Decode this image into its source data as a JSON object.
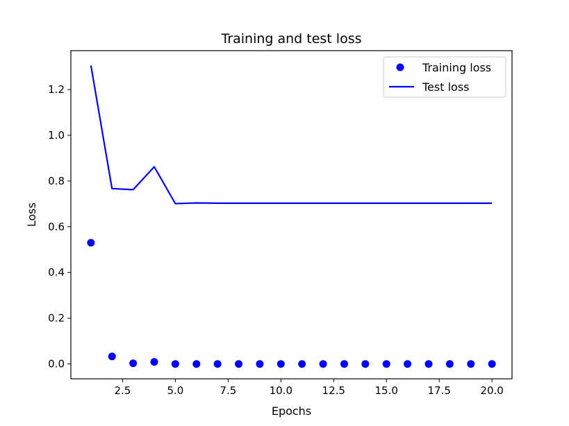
{
  "chart_data": {
    "type": "scatter",
    "title": "Training and test loss",
    "xlabel": "Epochs",
    "ylabel": "Loss",
    "xlim": [
      0.05,
      20.95
    ],
    "ylim": [
      -0.065,
      1.37
    ],
    "xticks": [
      2.5,
      5.0,
      7.5,
      10.0,
      12.5,
      15.0,
      17.5,
      20.0
    ],
    "xtick_labels": [
      "2.5",
      "5.0",
      "7.5",
      "10.0",
      "12.5",
      "15.0",
      "17.5",
      "20.0"
    ],
    "yticks": [
      0.0,
      0.2,
      0.4,
      0.6,
      0.8,
      1.0,
      1.2
    ],
    "ytick_labels": [
      "0.0",
      "0.2",
      "0.4",
      "0.6",
      "0.8",
      "1.0",
      "1.2"
    ],
    "grid": false,
    "legend_position": "top-right",
    "x": [
      1,
      2,
      3,
      4,
      5,
      6,
      7,
      8,
      9,
      10,
      11,
      12,
      13,
      14,
      15,
      16,
      17,
      18,
      19,
      20
    ],
    "series": [
      {
        "name": "Training loss",
        "style": "dots",
        "color": "#0000ff",
        "values": [
          0.53,
          0.033,
          0.003,
          0.009,
          0.0,
          0.0,
          0.0,
          0.0,
          0.0,
          0.0,
          0.0,
          0.0,
          0.0,
          0.0,
          0.0,
          0.0,
          0.0,
          0.0,
          0.0,
          0.0
        ]
      },
      {
        "name": "Test loss",
        "style": "line",
        "color": "#0000ff",
        "values": [
          1.305,
          0.767,
          0.762,
          0.862,
          0.701,
          0.704,
          0.703,
          0.703,
          0.703,
          0.703,
          0.703,
          0.703,
          0.703,
          0.703,
          0.703,
          0.703,
          0.703,
          0.703,
          0.703,
          0.703
        ]
      }
    ]
  }
}
